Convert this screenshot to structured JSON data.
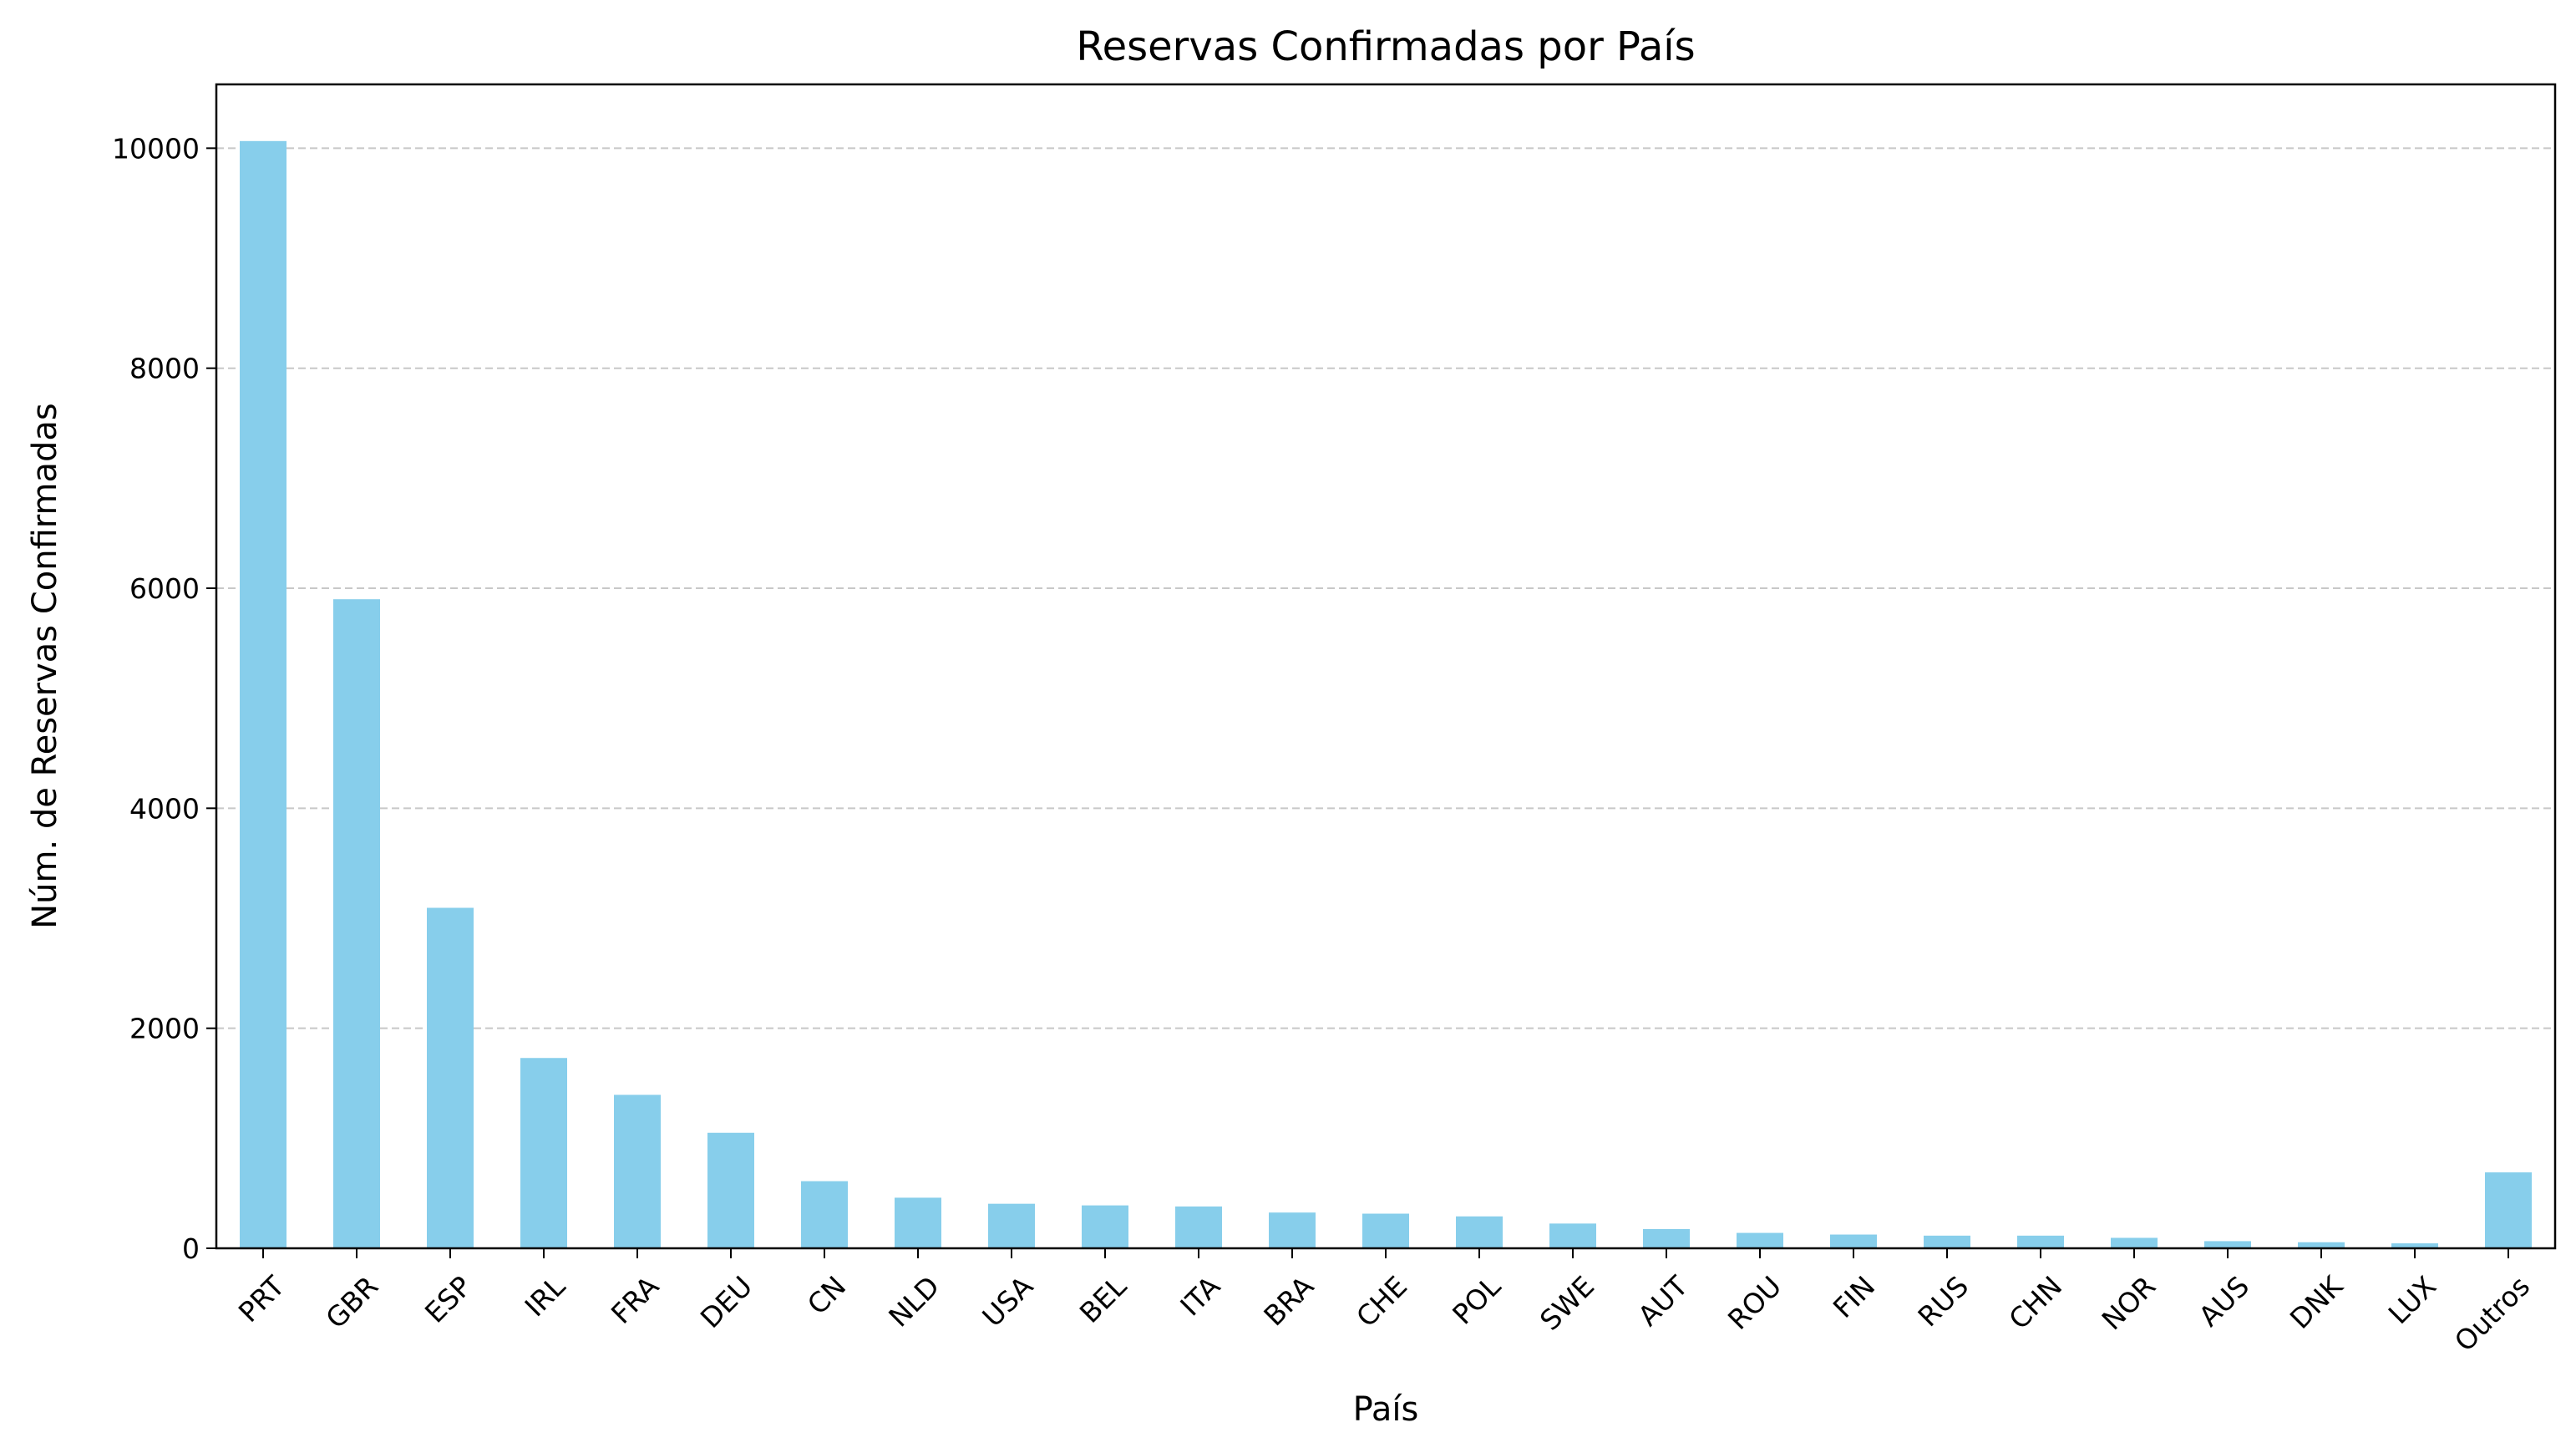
{
  "colors": {
    "bar": "#87CEEB",
    "grid": "#c8c8c8",
    "axis": "#000000"
  },
  "chart_data": {
    "type": "bar",
    "title": "Reservas Confirmadas por País",
    "xlabel": "País",
    "ylabel": "Núm. de Reservas Confirmadas",
    "categories": [
      "PRT",
      "GBR",
      "ESP",
      "IRL",
      "FRA",
      "DEU",
      "CN",
      "NLD",
      "USA",
      "BEL",
      "ITA",
      "BRA",
      "CHE",
      "POL",
      "SWE",
      "AUT",
      "ROU",
      "FIN",
      "RUS",
      "CHN",
      "NOR",
      "AUS",
      "DNK",
      "LUX",
      "Outros"
    ],
    "values": [
      10065,
      5900,
      3095,
      1730,
      1395,
      1050,
      610,
      460,
      405,
      390,
      380,
      325,
      315,
      290,
      225,
      175,
      140,
      125,
      115,
      115,
      95,
      65,
      55,
      45,
      690
    ],
    "yticks": [
      0,
      2000,
      4000,
      6000,
      8000,
      10000
    ],
    "ylim": [
      0,
      10580
    ],
    "grid": "horizontal dashed",
    "legend": "none"
  }
}
